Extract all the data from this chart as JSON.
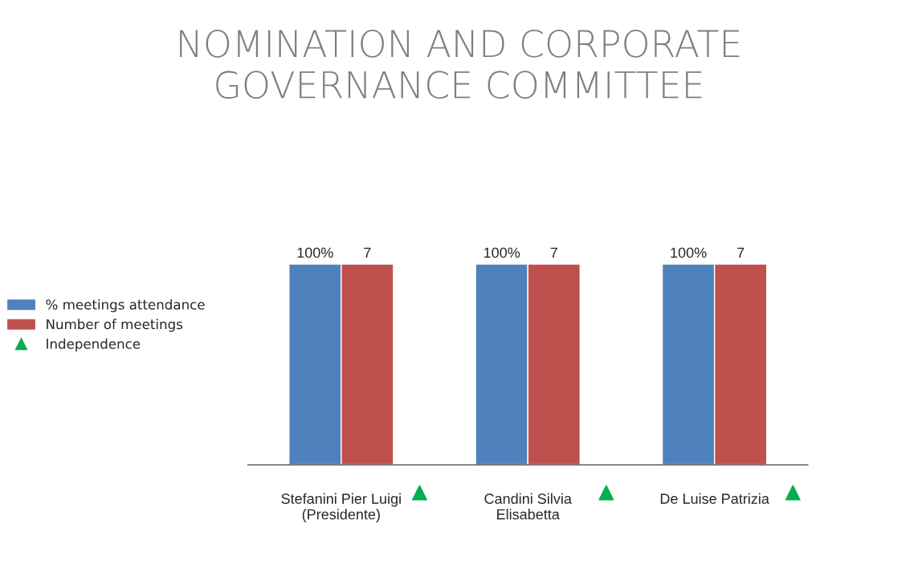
{
  "chart_data": {
    "type": "bar",
    "title": "NOMINATION AND CORPORATE\nGOVERNANCE COMMITTEE",
    "categories": [
      "Stefanini Pier Luigi\n(Presidente)",
      "Candini Silvia\nElisabetta",
      "De Luise Patrizia"
    ],
    "series": [
      {
        "name": "% meetings attendance",
        "color": "#4f81bd",
        "values": [
          100,
          100,
          100
        ],
        "value_labels": [
          "100%",
          "100%",
          "100%"
        ]
      },
      {
        "name": "Number of meetings",
        "color": "#c0504d",
        "values": [
          7,
          7,
          7
        ],
        "value_labels": [
          "7",
          "7",
          "7"
        ],
        "axis": "y2"
      },
      {
        "name": "Independence",
        "type": "scatter",
        "color": "#00b050",
        "marker": "triangle",
        "values": [
          null,
          null,
          null
        ]
      }
    ],
    "tick_labels": "x",
    "grid": false,
    "legend": "left"
  }
}
